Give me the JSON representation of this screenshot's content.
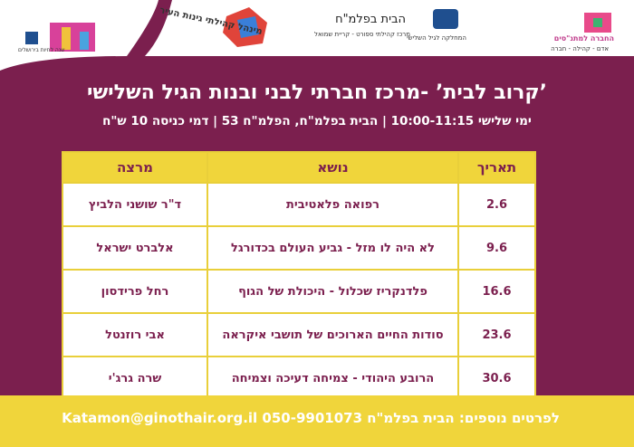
{
  "logos": {
    "matnasim": "החברה למתנ\"סים",
    "matnasim_tagline": "אדם - קהילה - חברה",
    "third_age": "המחלקה לגיל השלישי",
    "palmach_house": "הבית בפלמ\"ח",
    "palmach_tagline": "מרכז קהילתי ספורט - קריית שמואל",
    "ginot": "מינהל קהילתי גינות העיר",
    "jerusalem": "שנה לחיות בירושלים"
  },
  "title": "’קרוב לבית’ -מרכז חברתי לבני ובנות הגיל השלישי",
  "subtitle": "ימי שלישי 10:00-11:15 | הבית בפלמ\"ח, הפלמ\"ח 53 | דמי כניסה 10 ש\"ח",
  "table": {
    "headers": [
      "תאריך",
      "נושא",
      "מרצה"
    ],
    "rows": [
      [
        "2.6",
        "רפואה פלאטיבית",
        "ד\"ר שושני הלביץ"
      ],
      [
        "9.6",
        "לא היה לו מזל - גביע העולם בכדורגל",
        "אלברט ישראל"
      ],
      [
        "16.6",
        "פלדנקריז שכלול - היכולת של הגוף",
        "רחל פרידסון"
      ],
      [
        "23.6",
        "סודות החיים הארוכים של תושבי איקראה",
        "אבי רוזנטל"
      ],
      [
        "30.6",
        "הרובע היהודי - צמיחה דעיכה וצמיחה",
        "שרה גרג'י"
      ]
    ]
  },
  "footer": "לפרטים נוספים: הבית בפלמ\"ח 050-9901073 Katamon@ginothair.org.il"
}
